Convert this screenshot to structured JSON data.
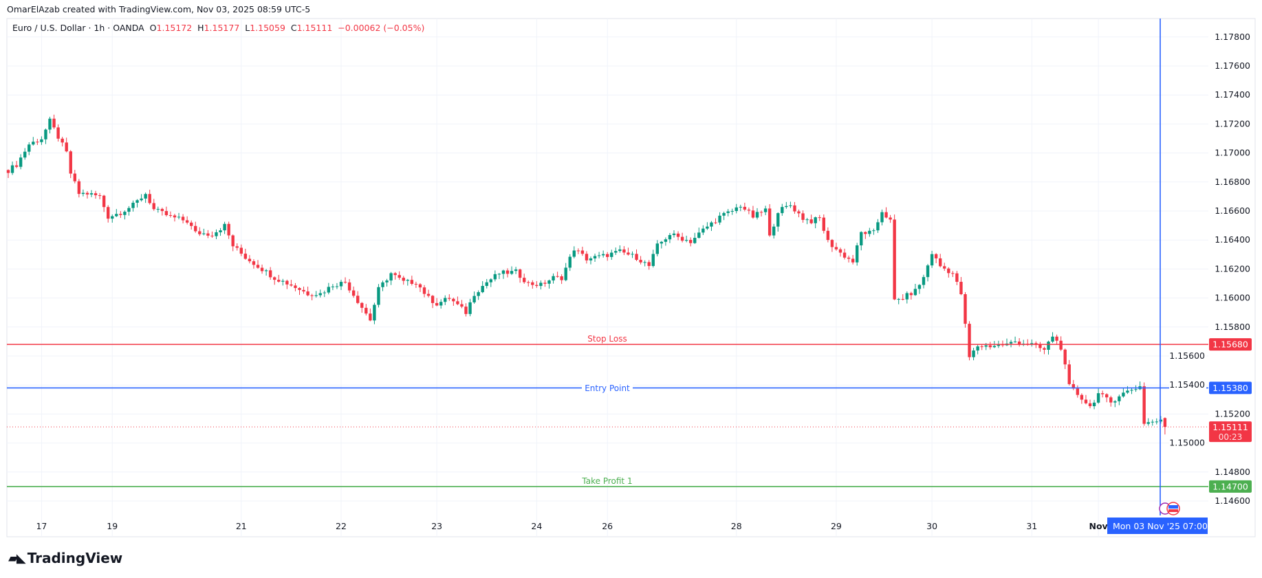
{
  "credit": "OmarElAzab created with TradingView.com, Nov 03, 2025 08:59 UTC-5",
  "legend": {
    "symbol": "Euro / U.S. Dollar · 1h · OANDA",
    "o_label": "O",
    "o": "1.15172",
    "h_label": "H",
    "h": "1.15177",
    "l_label": "L",
    "l": "1.15059",
    "c_label": "C",
    "c": "1.15111",
    "change": "−0.00062 (−0.05%)"
  },
  "logo": "TradingView",
  "chart_data": {
    "type": "candlestick",
    "symbol": "EURUSD",
    "interval": "1h",
    "ylim": [
      1.1455,
      1.179
    ],
    "y_ticks": [
      "1.17800",
      "1.17600",
      "1.17400",
      "1.17200",
      "1.17000",
      "1.16800",
      "1.16600",
      "1.16400",
      "1.16200",
      "1.16000",
      "1.15800",
      "1.15600",
      "1.15400",
      "1.15200",
      "1.15000",
      "1.14800",
      "1.14600"
    ],
    "x_ticks": [
      "17",
      "19",
      "21",
      "22",
      "23",
      "24",
      "26",
      "28",
      "29",
      "30",
      "31",
      "Nov"
    ],
    "x_tick_bar_index": [
      8,
      25,
      56,
      80,
      103,
      127,
      144,
      175,
      199,
      222,
      246,
      262
    ],
    "close_path_bar_price": [
      [
        0,
        1.1688
      ],
      [
        2,
        1.1692
      ],
      [
        5,
        1.1706
      ],
      [
        8,
        1.171
      ],
      [
        10,
        1.1722
      ],
      [
        12,
        1.1711
      ],
      [
        14,
        1.17
      ],
      [
        15,
        1.1686
      ],
      [
        17,
        1.1672
      ],
      [
        19,
        1.1672
      ],
      [
        22,
        1.167
      ],
      [
        24,
        1.1656
      ],
      [
        27,
        1.1659
      ],
      [
        30,
        1.1664
      ],
      [
        33,
        1.1672
      ],
      [
        35,
        1.1661
      ],
      [
        39,
        1.1656
      ],
      [
        43,
        1.1653
      ],
      [
        45,
        1.1645
      ],
      [
        49,
        1.1644
      ],
      [
        52,
        1.165
      ],
      [
        54,
        1.1636
      ],
      [
        57,
        1.1628
      ],
      [
        60,
        1.1622
      ],
      [
        64,
        1.1614
      ],
      [
        68,
        1.1609
      ],
      [
        72,
        1.1603
      ],
      [
        75,
        1.1603
      ],
      [
        78,
        1.1609
      ],
      [
        81,
        1.1611
      ],
      [
        84,
        1.1598
      ],
      [
        87,
        1.1585
      ],
      [
        89,
        1.1606
      ],
      [
        92,
        1.1617
      ],
      [
        95,
        1.1611
      ],
      [
        98,
        1.1611
      ],
      [
        101,
        1.16
      ],
      [
        103,
        1.1596
      ],
      [
        106,
        1.16
      ],
      [
        110,
        1.159
      ],
      [
        112,
        1.1603
      ],
      [
        115,
        1.1611
      ],
      [
        118,
        1.1617
      ],
      [
        122,
        1.1618
      ],
      [
        125,
        1.161
      ],
      [
        128,
        1.1609
      ],
      [
        131,
        1.1614
      ],
      [
        133,
        1.1614
      ],
      [
        136,
        1.1634
      ],
      [
        139,
        1.1627
      ],
      [
        143,
        1.1629
      ],
      [
        147,
        1.1632
      ],
      [
        151,
        1.1628
      ],
      [
        154,
        1.1622
      ],
      [
        156,
        1.1636
      ],
      [
        159,
        1.1644
      ],
      [
        162,
        1.1641
      ],
      [
        164,
        1.1639
      ],
      [
        167,
        1.1647
      ],
      [
        171,
        1.1656
      ],
      [
        174,
        1.166
      ],
      [
        176,
        1.1664
      ],
      [
        179,
        1.1656
      ],
      [
        182,
        1.1661
      ],
      [
        183,
        1.1642
      ],
      [
        185,
        1.166
      ],
      [
        188,
        1.1664
      ],
      [
        191,
        1.1655
      ],
      [
        193,
        1.1653
      ],
      [
        195,
        1.1655
      ],
      [
        197,
        1.1639
      ],
      [
        200,
        1.1631
      ],
      [
        203,
        1.1625
      ],
      [
        205,
        1.1645
      ],
      [
        208,
        1.1645
      ],
      [
        210,
        1.166
      ],
      [
        212,
        1.1653
      ],
      [
        213,
        1.1598
      ],
      [
        215,
        1.16
      ],
      [
        218,
        1.1605
      ],
      [
        220,
        1.1614
      ],
      [
        222,
        1.1631
      ],
      [
        224,
        1.1622
      ],
      [
        227,
        1.1617
      ],
      [
        229,
        1.1603
      ],
      [
        231,
        1.1559
      ],
      [
        233,
        1.1567
      ],
      [
        236,
        1.1567
      ],
      [
        240,
        1.1568
      ],
      [
        242,
        1.157
      ],
      [
        246,
        1.1568
      ],
      [
        249,
        1.1564
      ],
      [
        251,
        1.1574
      ],
      [
        253,
        1.1566
      ],
      [
        255,
        1.1539
      ],
      [
        258,
        1.1531
      ],
      [
        260,
        1.1525
      ],
      [
        262,
        1.1534
      ],
      [
        265,
        1.1528
      ],
      [
        267,
        1.1533
      ],
      [
        270,
        1.1537
      ],
      [
        272,
        1.1539
      ],
      [
        273,
        1.1514
      ],
      [
        276,
        1.1515
      ]
    ],
    "last_candle": {
      "o": 1.15172,
      "h": 1.15177,
      "l": 1.15059,
      "c": 1.15111
    },
    "colors": {
      "up": "#089981",
      "down": "#f23645"
    },
    "levels": [
      {
        "name": "Stop Loss",
        "price": 1.1568,
        "tag": "1.15680",
        "color": "#f23645"
      },
      {
        "name": "Entry Point",
        "price": 1.1538,
        "tag": "1.15380",
        "color": "#2962ff"
      },
      {
        "name": "Take Profit 1",
        "price": 1.147,
        "tag": "1.14700",
        "color": "#4caf50"
      }
    ],
    "last_price_tag": "1.15111",
    "countdown": "00:23",
    "crosshair_time_label": "Mon 03 Nov '25   07:00",
    "grid": true
  }
}
